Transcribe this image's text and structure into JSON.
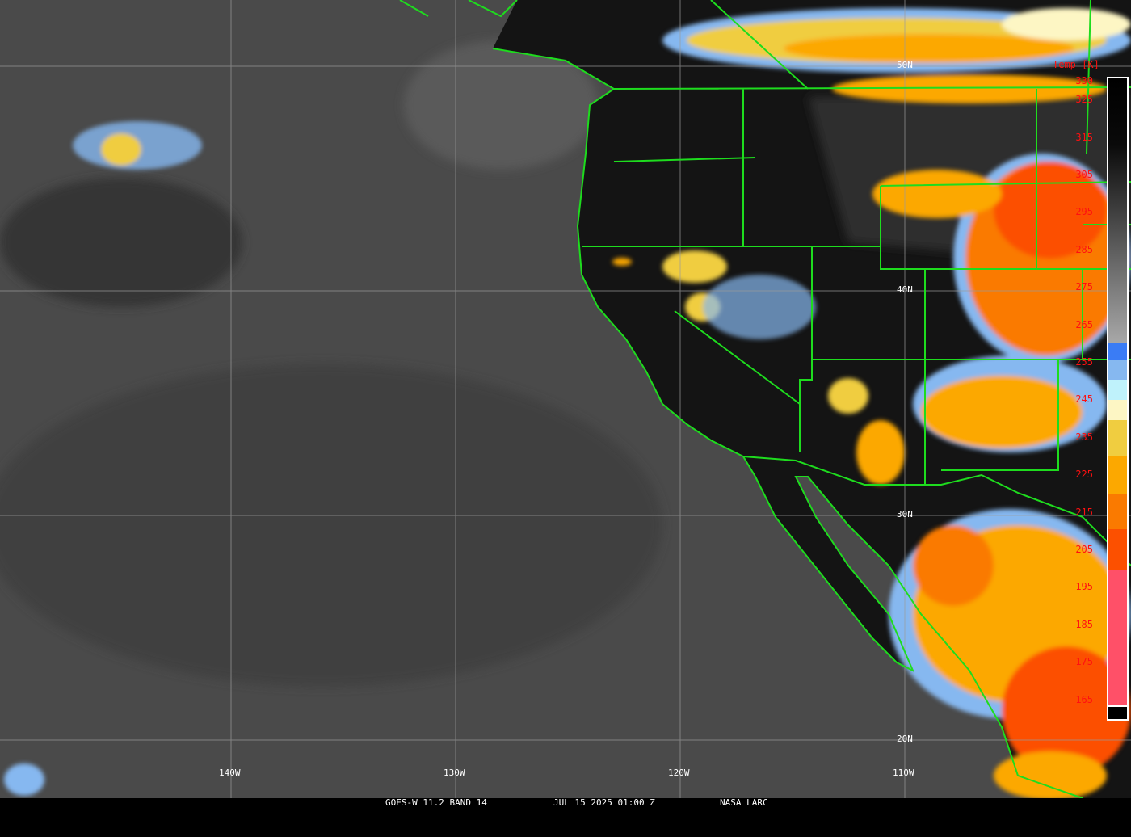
{
  "caption": {
    "product": "GOES-W 11.2 BAND 14",
    "datetime": "JUL 15 2025 01:00 Z",
    "source": "NASA LARC"
  },
  "grid": {
    "lat_labels": [
      "50N",
      "40N",
      "30N",
      "20N"
    ],
    "lon_labels": [
      "140W",
      "130W",
      "120W",
      "110W"
    ]
  },
  "colorbar": {
    "title": "Temp [K]",
    "ticks": [
      "330",
      "325",
      "315",
      "305",
      "295",
      "285",
      "275",
      "265",
      "255",
      "245",
      "235",
      "225",
      "215",
      "205",
      "195",
      "185",
      "175",
      "165"
    ],
    "colors": {
      "warm_top": "#000000",
      "warm_bottom": "#a8a8a8",
      "blue": "#3a7cf5",
      "light_blue": "#86b8f0",
      "pale_cyan": "#bff2fb",
      "cream": "#fdf6c4",
      "yellow": "#f0cd40",
      "orange": "#fca800",
      "dark_orange": "#fa7a00",
      "red_orange": "#fc5000",
      "pink": "#ff5068",
      "bottom": "#000000"
    }
  },
  "map_colors": {
    "ocean": "#4a4a4a",
    "land": "#121212",
    "borders": "#1edc1e",
    "grid": "#9a9a9a"
  }
}
